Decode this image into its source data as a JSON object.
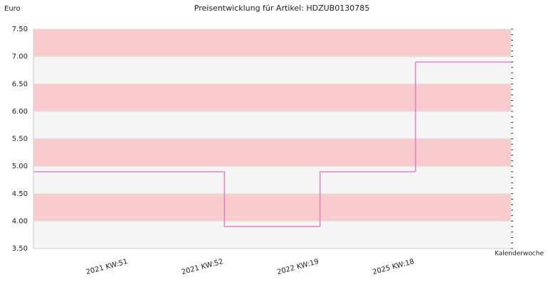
{
  "chart_data": {
    "type": "step",
    "title": "Preisentwicklung für Artikel: HDZUB0130785",
    "y_label": "Euro",
    "x_label": "Kalenderwoche",
    "categories": [
      "2021 KW:51",
      "2021 KW:52",
      "2022 KW:19",
      "2025 KW:18"
    ],
    "values": [
      4.9,
      3.9,
      4.9,
      6.9
    ],
    "color": "#e77fc8",
    "ylim": [
      3.5,
      7.5
    ],
    "yticks": [
      {
        "value": 3.5,
        "label": "3.50"
      },
      {
        "value": 4,
        "label": "4.00"
      },
      {
        "value": 4.5,
        "label": "4.50"
      },
      {
        "value": 5,
        "label": "5.00"
      },
      {
        "value": 5.5,
        "label": "5.50"
      },
      {
        "value": 6,
        "label": "6.00"
      },
      {
        "value": 6.5,
        "label": "6.50"
      },
      {
        "value": 7,
        "label": "7.00"
      },
      {
        "value": 7.5,
        "label": "7.50"
      }
    ],
    "band_colors": [
      "#f5f5f5",
      "#f8cccc"
    ]
  }
}
